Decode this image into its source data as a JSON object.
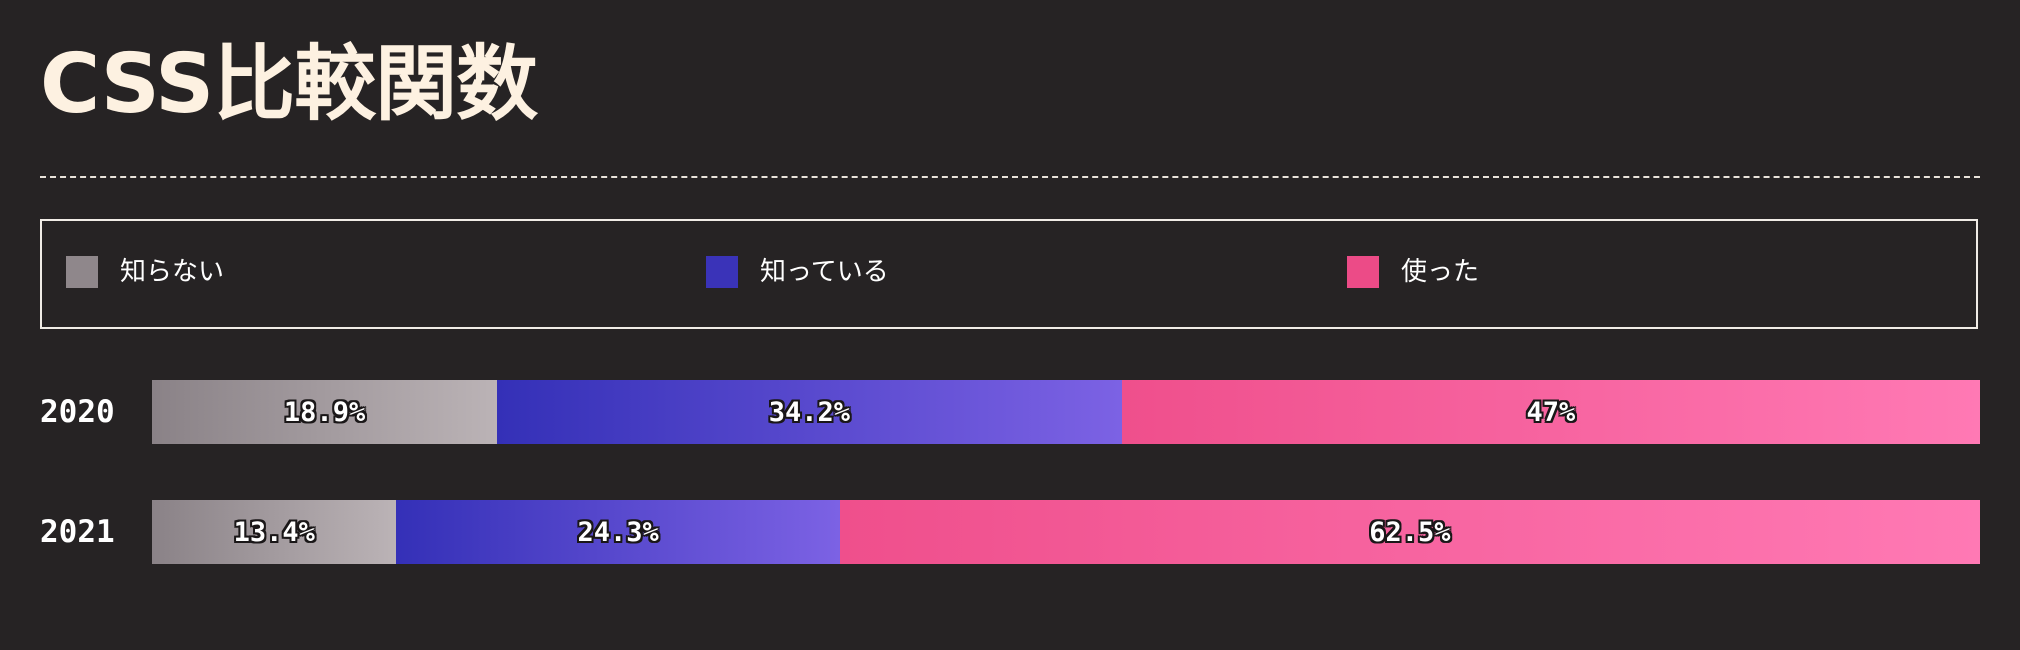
{
  "title": "CSS比較関数",
  "legend": [
    {
      "label": "知らない",
      "color": "#8f878b"
    },
    {
      "label": "知っている",
      "color": "#3a33b8"
    },
    {
      "label": "使った",
      "color": "#ec4b87"
    }
  ],
  "chart_data": {
    "type": "bar",
    "stacked": true,
    "orientation": "horizontal",
    "title": "CSS比較関数",
    "categories": [
      "2020",
      "2021"
    ],
    "series": [
      {
        "name": "知らない",
        "values": [
          18.9,
          13.4
        ],
        "labels": [
          "18.9%",
          "13.4%"
        ]
      },
      {
        "name": "知っている",
        "values": [
          34.2,
          24.3
        ],
        "labels": [
          "34.2%",
          "24.3%"
        ]
      },
      {
        "name": "使った",
        "values": [
          47,
          62.5
        ],
        "labels": [
          "47%",
          "62.5%"
        ]
      }
    ],
    "legend_position": "top",
    "grid": false
  }
}
